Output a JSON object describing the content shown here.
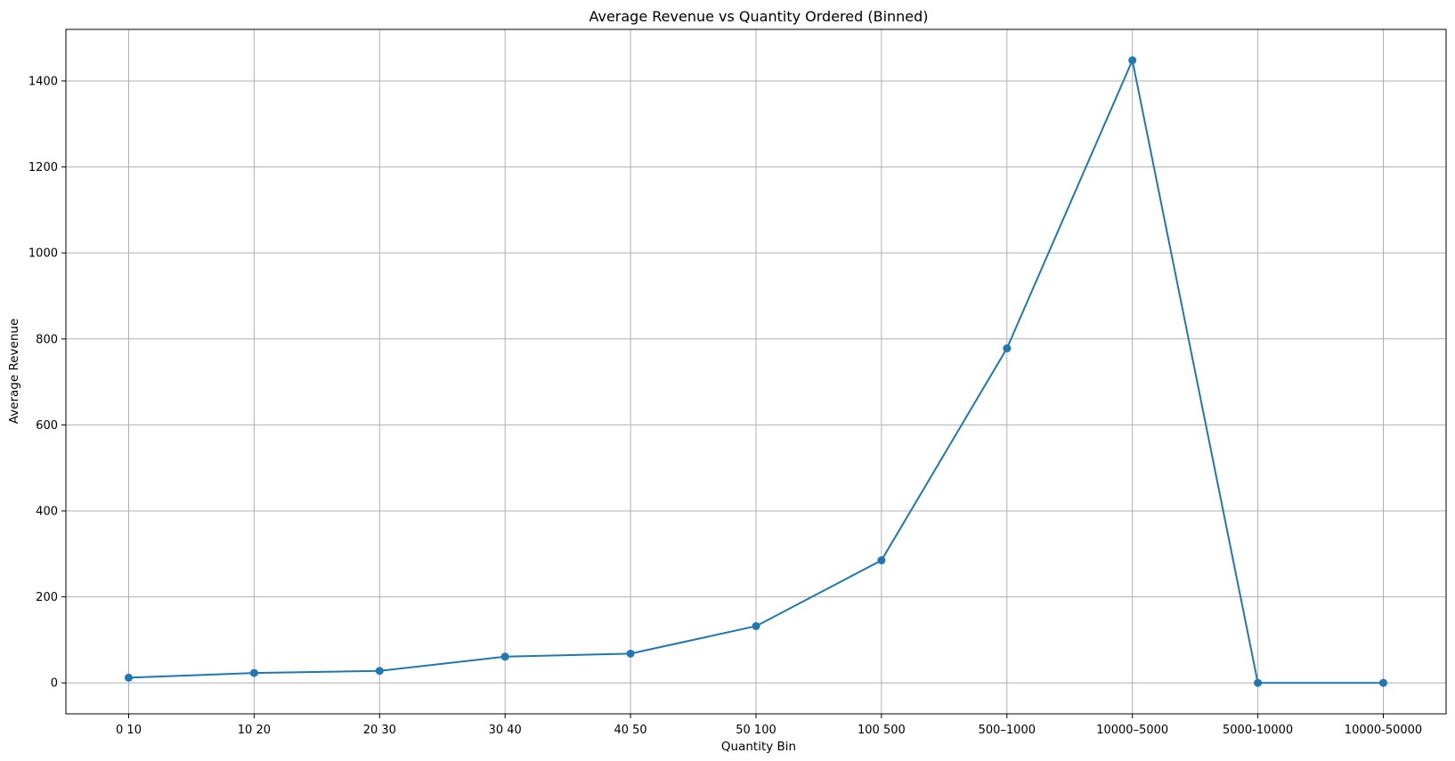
{
  "chart_data": {
    "type": "line",
    "title": "Average Revenue vs Quantity Ordered (Binned)",
    "xlabel": "Quantity Bin",
    "ylabel": "Average Revenue",
    "categories": [
      "0 10",
      "10 20",
      "20 30",
      "30 40",
      "40 50",
      "50 100",
      "100 500",
      "500–1000",
      "10000–5000",
      "5000-10000",
      "10000-50000"
    ],
    "series": [
      {
        "values": [
          12,
          23,
          28,
          61,
          68,
          132,
          285,
          778,
          1448,
          0,
          0
        ]
      }
    ],
    "ylim": [
      -72,
      1520
    ],
    "yticks": [
      0,
      200,
      400,
      600,
      800,
      1000,
      1200,
      1400
    ],
    "grid": true,
    "marker": "circle",
    "colors": {
      "line": "#1f77b4",
      "grid": "#b0b0b0",
      "axis": "#000000"
    }
  }
}
